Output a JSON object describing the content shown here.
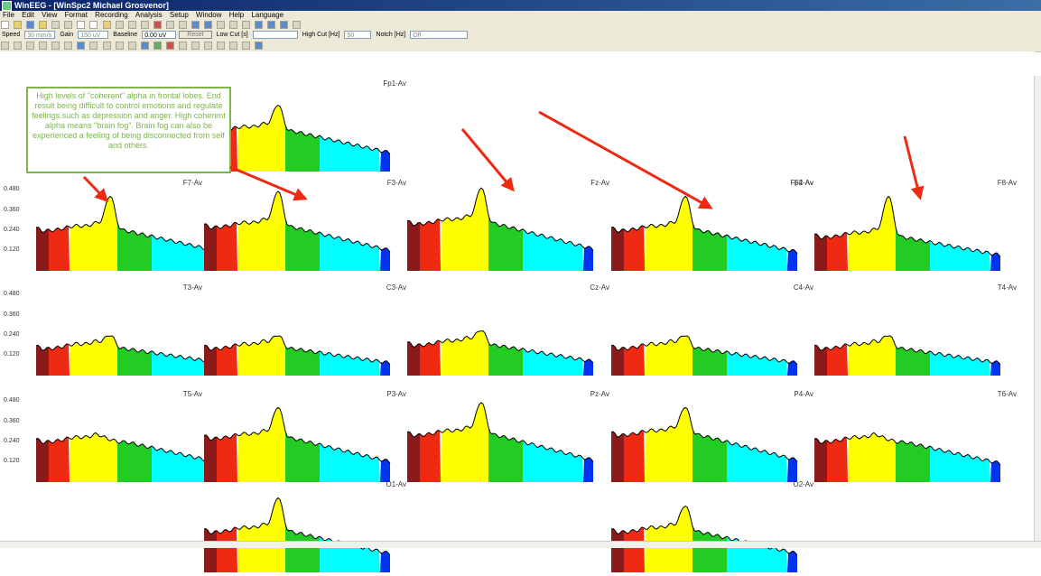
{
  "window": {
    "title": "WinEEG - [WinSpc2 Michael Grosvenor]"
  },
  "menu": {
    "items": [
      "File",
      "Edit",
      "View",
      "Format",
      "Recording",
      "Analysis",
      "Setup",
      "Window",
      "Help",
      "Language"
    ]
  },
  "toolbar": {
    "speed_label": "Speed",
    "speed_value": "30 mm/s",
    "gain_label": "Gain",
    "gain_value": "150 uV",
    "baseline_label": "Baseline",
    "baseline_value": "0.00 uV",
    "reset_label": "Reset",
    "lowcut_label": "Low Cut [s]",
    "lowcut_value": "",
    "highcut_label": "High Cut [Hz]",
    "highcut_value": "50",
    "notch_label": "Notch [Hz]",
    "notch_value": "Off"
  },
  "axis_ticks": [
    "0.480",
    "0.360",
    "0.240",
    "0.120"
  ],
  "band_colors": [
    "#8b1a1a",
    "#ee2a12",
    "#ffff00",
    "#22cc22",
    "#00ffff",
    "#0033ee"
  ],
  "channels": [
    {
      "label": "Fp1-Av",
      "peak": 0.4,
      "base": 0.24
    },
    {
      "label": "Fp2-Av",
      "peak": 0.4,
      "base": 0.24
    },
    {
      "label": "F7-Av",
      "peak": 0.45,
      "base": 0.24
    },
    {
      "label": "F3-Av",
      "peak": 0.48,
      "base": 0.26
    },
    {
      "label": "Fz-Av",
      "peak": 0.5,
      "base": 0.28
    },
    {
      "label": "F4-Av",
      "peak": 0.45,
      "base": 0.24
    },
    {
      "label": "F8-Av",
      "peak": 0.45,
      "base": 0.2
    },
    {
      "label": "T3-Av",
      "peak": 0.24,
      "base": 0.16
    },
    {
      "label": "C3-Av",
      "peak": 0.24,
      "base": 0.16
    },
    {
      "label": "Cz-Av",
      "peak": 0.27,
      "base": 0.18
    },
    {
      "label": "C4-Av",
      "peak": 0.24,
      "base": 0.16
    },
    {
      "label": "T4-Av",
      "peak": 0.24,
      "base": 0.16
    },
    {
      "label": "T5-Av",
      "peak": 0.25,
      "base": 0.24
    },
    {
      "label": "P3-Av",
      "peak": 0.45,
      "base": 0.26
    },
    {
      "label": "Pz-Av",
      "peak": 0.48,
      "base": 0.28
    },
    {
      "label": "P4-Av",
      "peak": 0.45,
      "base": 0.28
    },
    {
      "label": "T6-Av",
      "peak": 0.25,
      "base": 0.24
    },
    {
      "label": "O1-Av",
      "peak": 0.45,
      "base": 0.24
    },
    {
      "label": "O2-Av",
      "peak": 0.4,
      "base": 0.24
    }
  ],
  "annotation": {
    "text": "High levels of \"coherent\" alpha in frontal lobes. End result being difficult to control emotions and regulate feelings such as depression and anger. High coherent alpha means \"brain fog\". Brain fog can also be experienced a feeling of being disconnected from self and others."
  },
  "arrow_color": "#ee2a12"
}
